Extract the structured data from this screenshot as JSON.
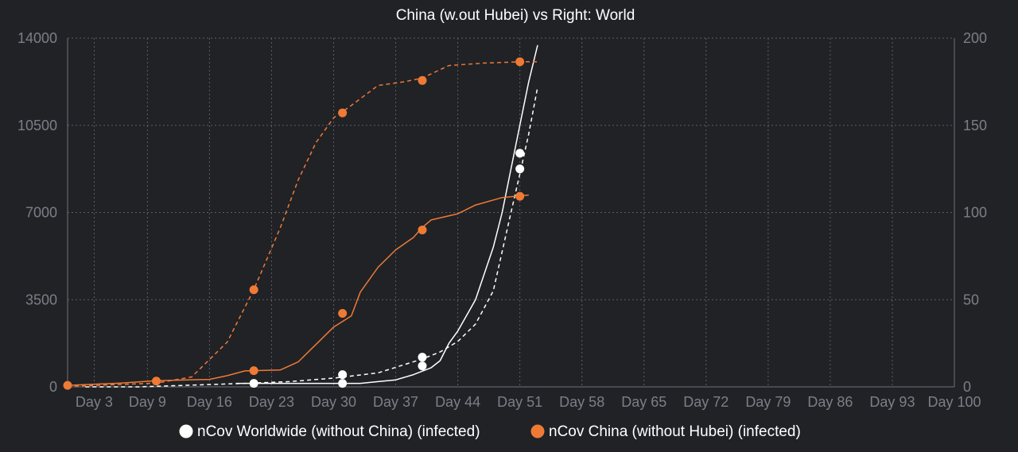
{
  "chart_data": {
    "type": "line",
    "title": "China (w.out Hubei) vs Right: World",
    "grid": true,
    "x": {
      "min": 0,
      "max": 100,
      "tick_values": [
        3,
        9,
        16,
        23,
        30,
        37,
        44,
        51,
        58,
        65,
        72,
        79,
        86,
        93,
        100
      ],
      "tick_labels": [
        "Day 3",
        "Day 9",
        "Day 16",
        "Day 23",
        "Day 30",
        "Day 37",
        "Day 44",
        "Day 51",
        "Day 58",
        "Day 65",
        "Day 72",
        "Day 79",
        "Day 86",
        "Day 93",
        "Day 100"
      ]
    },
    "y_left": {
      "min": 0,
      "max": 14000,
      "ticks": [
        "0",
        "3500",
        "7000",
        "10500",
        "14000"
      ]
    },
    "y_right": {
      "min": 0,
      "max": 200,
      "ticks": [
        "0",
        "50",
        "100",
        "150",
        "200"
      ]
    },
    "legend": {
      "position": "bottom",
      "items": [
        {
          "label": "nCov Worldwide (without China) (infected)",
          "color": "#ffffff"
        },
        {
          "label": "nCov China (without Hubei) (infected)",
          "color": "#ef7a35"
        }
      ]
    },
    "series": [
      {
        "key": "world_solid",
        "axis": "right",
        "color": "#ffffff",
        "dash": false,
        "points": [
          [
            19,
            2
          ],
          [
            22,
            2
          ],
          [
            27,
            2
          ],
          [
            30,
            2
          ],
          [
            33,
            2
          ],
          [
            35,
            3
          ],
          [
            37,
            4
          ],
          [
            39,
            7
          ],
          [
            41,
            11
          ],
          [
            42,
            15
          ],
          [
            43,
            25
          ],
          [
            44,
            32
          ],
          [
            46,
            50
          ],
          [
            48,
            80
          ],
          [
            49,
            100
          ],
          [
            50,
            125
          ],
          [
            51,
            150
          ],
          [
            52,
            175
          ],
          [
            53,
            196
          ]
        ],
        "markers": [
          [
            21,
            2
          ],
          [
            31,
            2
          ],
          [
            40,
            12
          ],
          [
            51,
            125
          ],
          [
            51,
            134
          ]
        ]
      },
      {
        "key": "world_dashed",
        "axis": "right",
        "color": "#ffffff",
        "dash": true,
        "points": [
          [
            2,
            0
          ],
          [
            8,
            0
          ],
          [
            14,
            1
          ],
          [
            20,
            2
          ],
          [
            25,
            3
          ],
          [
            30,
            5
          ],
          [
            35,
            8
          ],
          [
            40,
            16
          ],
          [
            42,
            20
          ],
          [
            44,
            26
          ],
          [
            46,
            36
          ],
          [
            48,
            55
          ],
          [
            50,
            100
          ],
          [
            51,
            122
          ],
          [
            52,
            145
          ],
          [
            53,
            172
          ]
        ],
        "markers": [
          [
            31,
            7
          ],
          [
            40,
            17
          ]
        ]
      },
      {
        "key": "china_solid",
        "axis": "left",
        "color": "#ef7a35",
        "dash": false,
        "points": [
          [
            0,
            60
          ],
          [
            6,
            150
          ],
          [
            10,
            250
          ],
          [
            16,
            300
          ],
          [
            18,
            450
          ],
          [
            20,
            640
          ],
          [
            24,
            680
          ],
          [
            26,
            1000
          ],
          [
            28,
            1700
          ],
          [
            30,
            2400
          ],
          [
            32,
            2850
          ],
          [
            33,
            3800
          ],
          [
            35,
            4800
          ],
          [
            37,
            5500
          ],
          [
            39,
            6000
          ],
          [
            40,
            6400
          ],
          [
            41,
            6700
          ],
          [
            44,
            6950
          ],
          [
            46,
            7300
          ],
          [
            49,
            7600
          ],
          [
            52,
            7700
          ]
        ],
        "markers": [
          [
            0,
            60
          ],
          [
            10,
            230
          ],
          [
            21,
            650
          ],
          [
            31,
            2950
          ],
          [
            40,
            6300
          ],
          [
            51,
            7650
          ]
        ]
      },
      {
        "key": "china_dashed",
        "axis": "left",
        "color": "#ef7a35",
        "dash": true,
        "points": [
          [
            0,
            20
          ],
          [
            10,
            150
          ],
          [
            14,
            400
          ],
          [
            18,
            1800
          ],
          [
            21,
            3900
          ],
          [
            24,
            6400
          ],
          [
            26,
            8300
          ],
          [
            28,
            9800
          ],
          [
            30,
            10800
          ],
          [
            32,
            11300
          ],
          [
            35,
            12100
          ],
          [
            38,
            12250
          ],
          [
            40,
            12400
          ],
          [
            43,
            12900
          ],
          [
            47,
            13000
          ],
          [
            51,
            13050
          ],
          [
            53,
            13050
          ]
        ],
        "markers": [
          [
            21,
            3900
          ],
          [
            31,
            11000
          ],
          [
            40,
            12300
          ],
          [
            51,
            13050
          ]
        ]
      }
    ]
  }
}
